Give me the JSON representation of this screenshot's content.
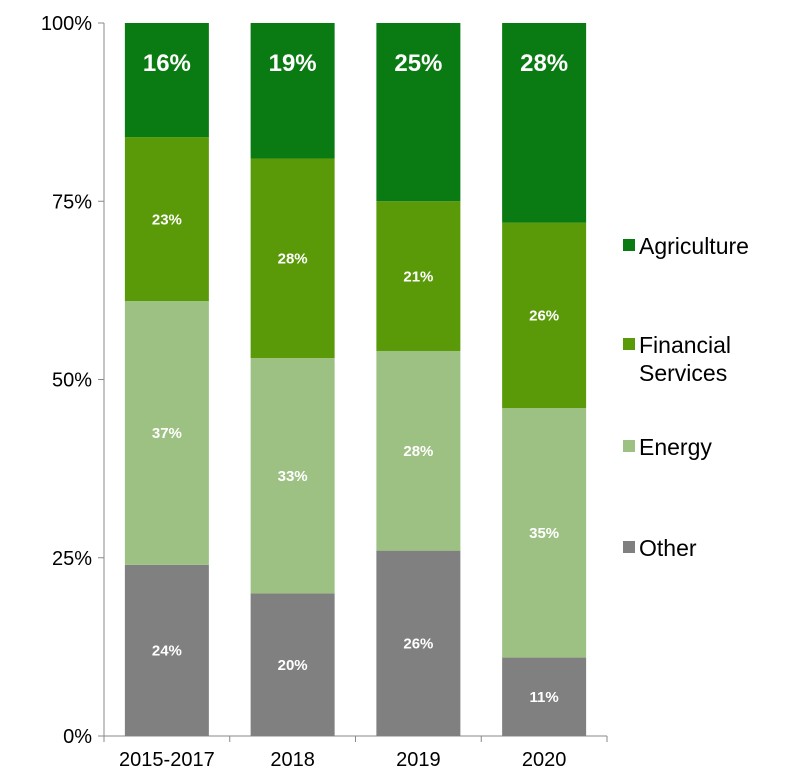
{
  "chart_data": {
    "type": "bar",
    "stacked": true,
    "normalized": true,
    "title": "",
    "xlabel": "",
    "ylabel": "",
    "categories": [
      "2015-2017",
      "2018",
      "2019",
      "2020"
    ],
    "ylim": [
      0,
      100
    ],
    "yticks": [
      "0%",
      "25%",
      "50%",
      "75%",
      "100%"
    ],
    "ytick_values": [
      0,
      25,
      50,
      75,
      100
    ],
    "grid": false,
    "legend_position": "right",
    "series": [
      {
        "name": "Other",
        "color": "#808080",
        "values": [
          24,
          20,
          26,
          11
        ],
        "labels": [
          "24%",
          "20%",
          "26%",
          "11%"
        ]
      },
      {
        "name": "Energy",
        "color": "#9dc183",
        "values": [
          37,
          33,
          28,
          35
        ],
        "labels": [
          "37%",
          "33%",
          "28%",
          "35%"
        ]
      },
      {
        "name": "Financial Services",
        "color": "#5a9a08",
        "values": [
          23,
          28,
          21,
          26
        ],
        "labels": [
          "23%",
          "28%",
          "21%",
          "26%"
        ]
      },
      {
        "name": "Agriculture",
        "color": "#0a7a12",
        "values": [
          16,
          19,
          25,
          28
        ],
        "labels": [
          "16%",
          "19%",
          "25%",
          "28%"
        ]
      }
    ],
    "legend": [
      {
        "name": "Agriculture",
        "color": "#0a7a12"
      },
      {
        "name": "Financial Services",
        "color": "#5a9a08"
      },
      {
        "name": "Energy",
        "color": "#9dc183"
      },
      {
        "name": "Other",
        "color": "#808080"
      }
    ]
  }
}
